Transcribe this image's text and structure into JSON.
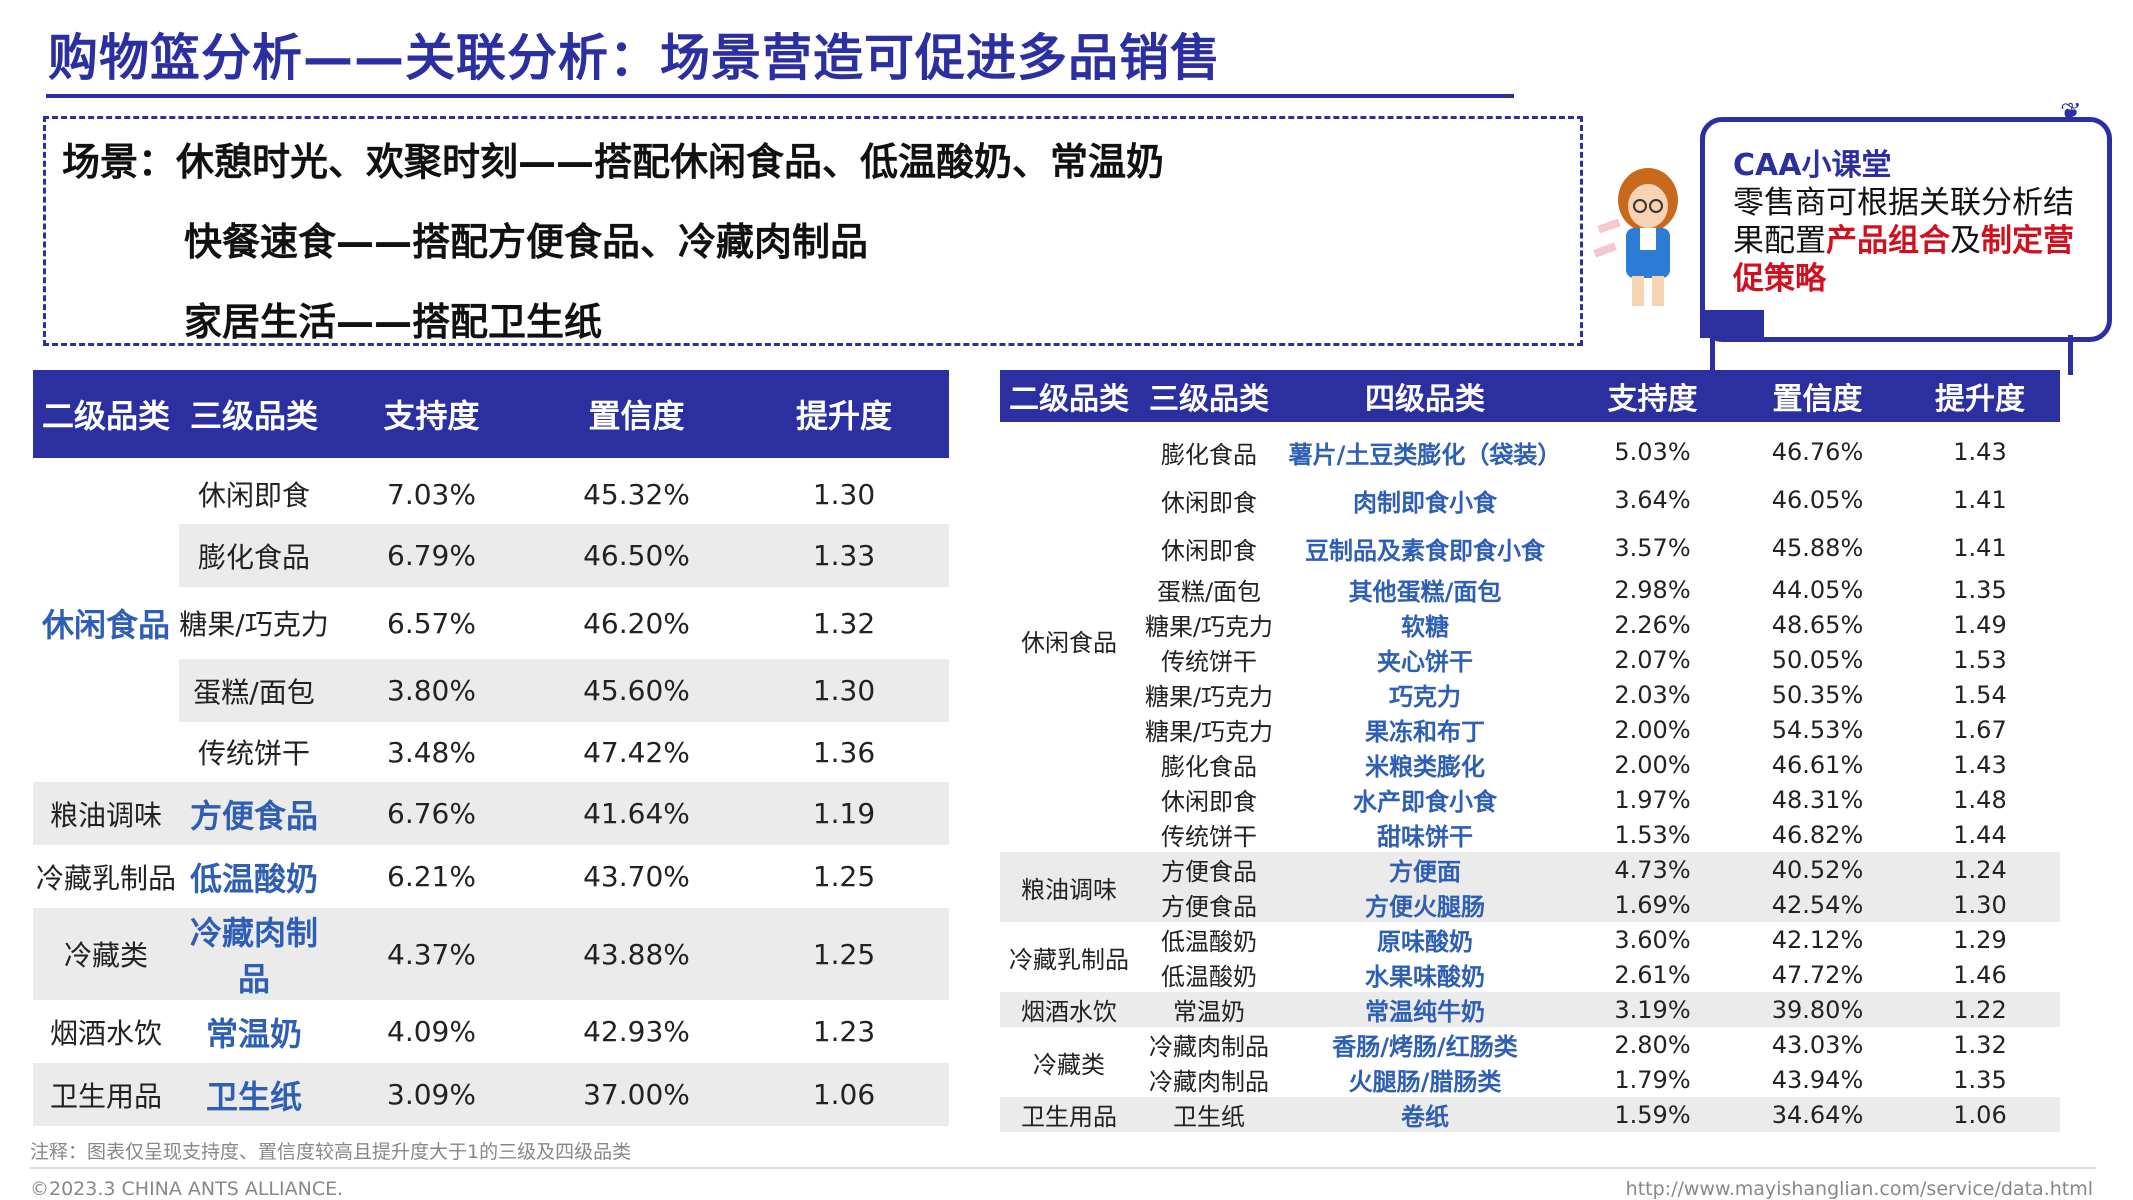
{
  "title": "购物篮分析——关联分析：场景营造可促进多品销售",
  "scenes": {
    "line1": "场景：休憩时光、欢聚时刻——搭配休闲食品、低温酸奶、常温奶",
    "line2": "快餐速食——搭配方便食品、冷藏肉制品",
    "line3": "家居生活——搭配卫生纸"
  },
  "caa": {
    "title": "CAA小课堂",
    "text_1": "零售商可根据关联分析结果配置",
    "highlight_1": "产品组合",
    "text_2": "及",
    "highlight_2": "制定营促策略",
    "highlight_color": "#d0101e"
  },
  "left_table": {
    "headers": [
      "二级品类",
      "三级品类",
      "支持度",
      "置信度",
      "提升度"
    ],
    "rows": [
      {
        "l2": "休闲食品",
        "l3": "休闲即食",
        "support": "7.03%",
        "confidence": "45.32%",
        "lift": "1.30"
      },
      {
        "l2": "",
        "l3": "膨化食品",
        "support": "6.79%",
        "confidence": "46.50%",
        "lift": "1.33"
      },
      {
        "l2": "",
        "l3": "糖果/巧克力",
        "support": "6.57%",
        "confidence": "46.20%",
        "lift": "1.32"
      },
      {
        "l2": "",
        "l3": "蛋糕/面包",
        "support": "3.80%",
        "confidence": "45.60%",
        "lift": "1.30"
      },
      {
        "l2": "",
        "l3": "传统饼干",
        "support": "3.48%",
        "confidence": "47.42%",
        "lift": "1.36"
      },
      {
        "l2": "粮油调味",
        "l3": "方便食品",
        "support": "6.76%",
        "confidence": "41.64%",
        "lift": "1.19"
      },
      {
        "l2": "冷藏乳制品",
        "l3": "低温酸奶",
        "support": "6.21%",
        "confidence": "43.70%",
        "lift": "1.25"
      },
      {
        "l2": "冷藏类",
        "l3": "冷藏肉制品",
        "support": "4.37%",
        "confidence": "43.88%",
        "lift": "1.25"
      },
      {
        "l2": "烟酒水饮",
        "l3": "常温奶",
        "support": "4.09%",
        "confidence": "42.93%",
        "lift": "1.23"
      },
      {
        "l2": "卫生用品",
        "l3": "卫生纸",
        "support": "3.09%",
        "confidence": "37.00%",
        "lift": "1.06"
      }
    ]
  },
  "right_table": {
    "headers": [
      "二级品类",
      "三级品类",
      "四级品类",
      "支持度",
      "置信度",
      "提升度"
    ],
    "groups": [
      {
        "l2": "休闲食品",
        "rows": [
          {
            "l3": "膨化食品",
            "l4": "薯片/土豆类膨化（袋装）",
            "support": "5.03%",
            "confidence": "46.76%",
            "lift": "1.43"
          },
          {
            "l3": "休闲即食",
            "l4": "肉制即食小食",
            "support": "3.64%",
            "confidence": "46.05%",
            "lift": "1.41"
          },
          {
            "l3": "休闲即食",
            "l4": "豆制品及素食即食小食",
            "support": "3.57%",
            "confidence": "45.88%",
            "lift": "1.41"
          },
          {
            "l3": "蛋糕/面包",
            "l4": "其他蛋糕/面包",
            "support": "2.98%",
            "confidence": "44.05%",
            "lift": "1.35"
          },
          {
            "l3": "糖果/巧克力",
            "l4": "软糖",
            "support": "2.26%",
            "confidence": "48.65%",
            "lift": "1.49"
          },
          {
            "l3": "传统饼干",
            "l4": "夹心饼干",
            "support": "2.07%",
            "confidence": "50.05%",
            "lift": "1.53"
          },
          {
            "l3": "糖果/巧克力",
            "l4": "巧克力",
            "support": "2.03%",
            "confidence": "50.35%",
            "lift": "1.54"
          },
          {
            "l3": "糖果/巧克力",
            "l4": "果冻和布丁",
            "support": "2.00%",
            "confidence": "54.53%",
            "lift": "1.67"
          },
          {
            "l3": "膨化食品",
            "l4": "米粮类膨化",
            "support": "2.00%",
            "confidence": "46.61%",
            "lift": "1.43"
          },
          {
            "l3": "休闲即食",
            "l4": "水产即食小食",
            "support": "1.97%",
            "confidence": "48.31%",
            "lift": "1.48"
          },
          {
            "l3": "传统饼干",
            "l4": "甜味饼干",
            "support": "1.53%",
            "confidence": "46.82%",
            "lift": "1.44"
          }
        ]
      },
      {
        "l2": "粮油调味",
        "rows": [
          {
            "l3": "方便食品",
            "l4": "方便面",
            "support": "4.73%",
            "confidence": "40.52%",
            "lift": "1.24"
          },
          {
            "l3": "方便食品",
            "l4": "方便火腿肠",
            "support": "1.69%",
            "confidence": "42.54%",
            "lift": "1.30"
          }
        ]
      },
      {
        "l2": "冷藏乳制品",
        "rows": [
          {
            "l3": "低温酸奶",
            "l4": "原味酸奶",
            "support": "3.60%",
            "confidence": "42.12%",
            "lift": "1.29"
          },
          {
            "l3": "低温酸奶",
            "l4": "水果味酸奶",
            "support": "2.61%",
            "confidence": "47.72%",
            "lift": "1.46"
          }
        ]
      },
      {
        "l2": "烟酒水饮",
        "rows": [
          {
            "l3": "常温奶",
            "l4": "常温纯牛奶",
            "support": "3.19%",
            "confidence": "39.80%",
            "lift": "1.22"
          }
        ]
      },
      {
        "l2": "冷藏类",
        "rows": [
          {
            "l3": "冷藏肉制品",
            "l4": "香肠/烤肠/红肠类",
            "support": "2.80%",
            "confidence": "43.03%",
            "lift": "1.32"
          },
          {
            "l3": "冷藏肉制品",
            "l4": "火腿肠/腊肠类",
            "support": "1.79%",
            "confidence": "43.94%",
            "lift": "1.35"
          }
        ]
      },
      {
        "l2": "卫生用品",
        "rows": [
          {
            "l3": "卫生纸",
            "l4": "卷纸",
            "support": "1.59%",
            "confidence": "34.64%",
            "lift": "1.06"
          }
        ]
      }
    ]
  },
  "footer": {
    "note": "注释：图表仅呈现支持度、置信度较高且提升度大于1的三级及四级品类",
    "copyright": "©2023.3 CHINA ANTS ALLIANCE.",
    "url": "http://www.mayishanglian.com/service/data.html"
  },
  "colors": {
    "brand": "#2b2fa0",
    "accent_text": "#2e5fb5",
    "row_gray": "#ebebeb"
  }
}
